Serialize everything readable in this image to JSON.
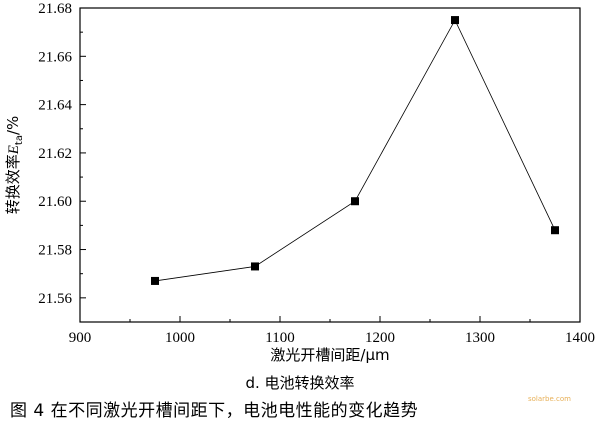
{
  "chart_data": {
    "type": "scatter",
    "line": true,
    "x": [
      975,
      1075,
      1175,
      1275,
      1375
    ],
    "y": [
      21.567,
      21.573,
      21.6,
      21.675,
      21.588
    ],
    "xlim": [
      900,
      1400
    ],
    "ylim": [
      21.55,
      21.68
    ],
    "x_ticks": [
      "900",
      "1000",
      "1100",
      "1200",
      "1300",
      "1400"
    ],
    "y_ticks": [
      "21.56",
      "21.58",
      "21.60",
      "21.62",
      "21.64",
      "21.66",
      "21.68"
    ],
    "xlabel": "激光开槽间距/μm",
    "ylabel_prefix": "转换效率",
    "ylabel_var": "E",
    "ylabel_sub": "ta",
    "ylabel_suffix": "/%",
    "marker": "square",
    "grid": false,
    "line_color": "#000000",
    "marker_color": "#000000"
  },
  "subcaption": "d. 电池转换效率",
  "figure_caption": "图 4  在不同激光开槽间距下，电池电性能的变化趋势",
  "watermark": "solarbe.com"
}
